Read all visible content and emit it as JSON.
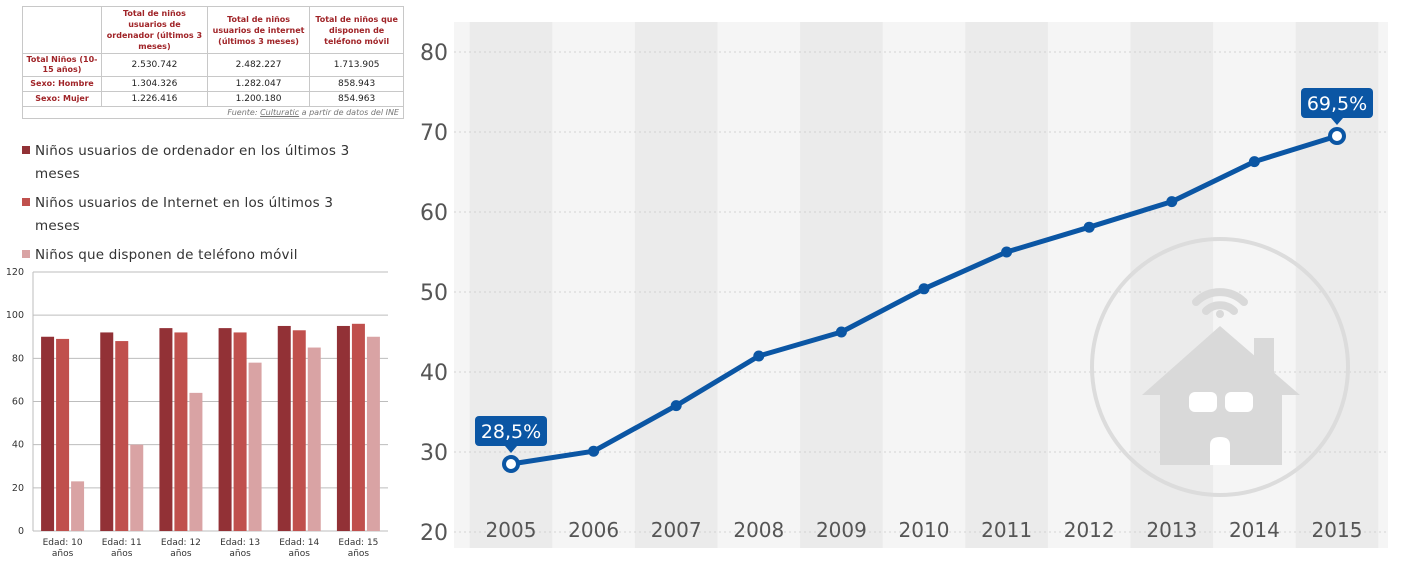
{
  "table": {
    "headers": [
      "Total de niños usuarios de ordenador (últimos 3 meses)",
      "Total de niños usuarios de internet (últimos 3 meses)",
      "Total de niños que disponen de teléfono móvil"
    ],
    "rows": [
      {
        "label": "Total Niños (10-15 años)",
        "values": [
          "2.530.742",
          "2.482.227",
          "1.713.905"
        ]
      },
      {
        "label": "Sexo: Hombre",
        "values": [
          "1.304.326",
          "1.282.047",
          "858.943"
        ]
      },
      {
        "label": "Sexo: Mujer",
        "values": [
          "1.226.416",
          "1.200.180",
          "854.963"
        ]
      }
    ],
    "source_prefix": "Fuente: ",
    "source_link": "Culturatic",
    "source_suffix": " a partir de datos del INE"
  },
  "colors": {
    "series1": "#923136",
    "series2": "#c0504d",
    "series3": "#d9a3a4",
    "line": "#0b56a4",
    "stripe": "#ebebeb",
    "line_bg": "#f5f5f5"
  },
  "chart_data": [
    {
      "type": "bar",
      "categories": [
        [
          "Edad: 10",
          "años"
        ],
        [
          "Edad: 11",
          "años"
        ],
        [
          "Edad: 12",
          "años"
        ],
        [
          "Edad: 13",
          "años"
        ],
        [
          "Edad: 14",
          "años"
        ],
        [
          "Edad: 15",
          "años"
        ]
      ],
      "series": [
        {
          "name": "Niños usuarios de ordenador en los últimos 3 meses",
          "values": [
            90,
            92,
            94,
            94,
            95,
            95
          ]
        },
        {
          "name": "Niños usuarios de Internet en los últimos 3 meses",
          "values": [
            89,
            88,
            92,
            92,
            93,
            96
          ]
        },
        {
          "name": "Niños que disponen de teléfono móvil",
          "values": [
            23,
            40,
            64,
            78,
            85,
            90
          ]
        }
      ],
      "ylim": [
        0,
        120
      ],
      "yticks": [
        "0",
        "20",
        "40",
        "60",
        "80",
        "100",
        "120"
      ],
      "ytick_values": [
        0,
        20,
        40,
        60,
        80,
        100,
        120
      ],
      "grid": true,
      "legend": "top"
    },
    {
      "type": "line",
      "x": [
        "2005",
        "2006",
        "2007",
        "2008",
        "2009",
        "2010",
        "2011",
        "2012",
        "2013",
        "2014",
        "2015"
      ],
      "y": [
        28.5,
        30.1,
        35.8,
        42,
        45,
        50.4,
        55,
        58.1,
        61.3,
        66.3,
        69.5
      ],
      "ylim": [
        18,
        80
      ],
      "yticks": [
        "20",
        "30",
        "40",
        "50",
        "60",
        "70",
        "80"
      ],
      "ytick_values": [
        20,
        30,
        40,
        50,
        60,
        70,
        80
      ],
      "labels": [
        {
          "index": 0,
          "text": "28,5%"
        },
        {
          "index": 10,
          "text": "69,5%"
        }
      ],
      "grid": true
    }
  ]
}
